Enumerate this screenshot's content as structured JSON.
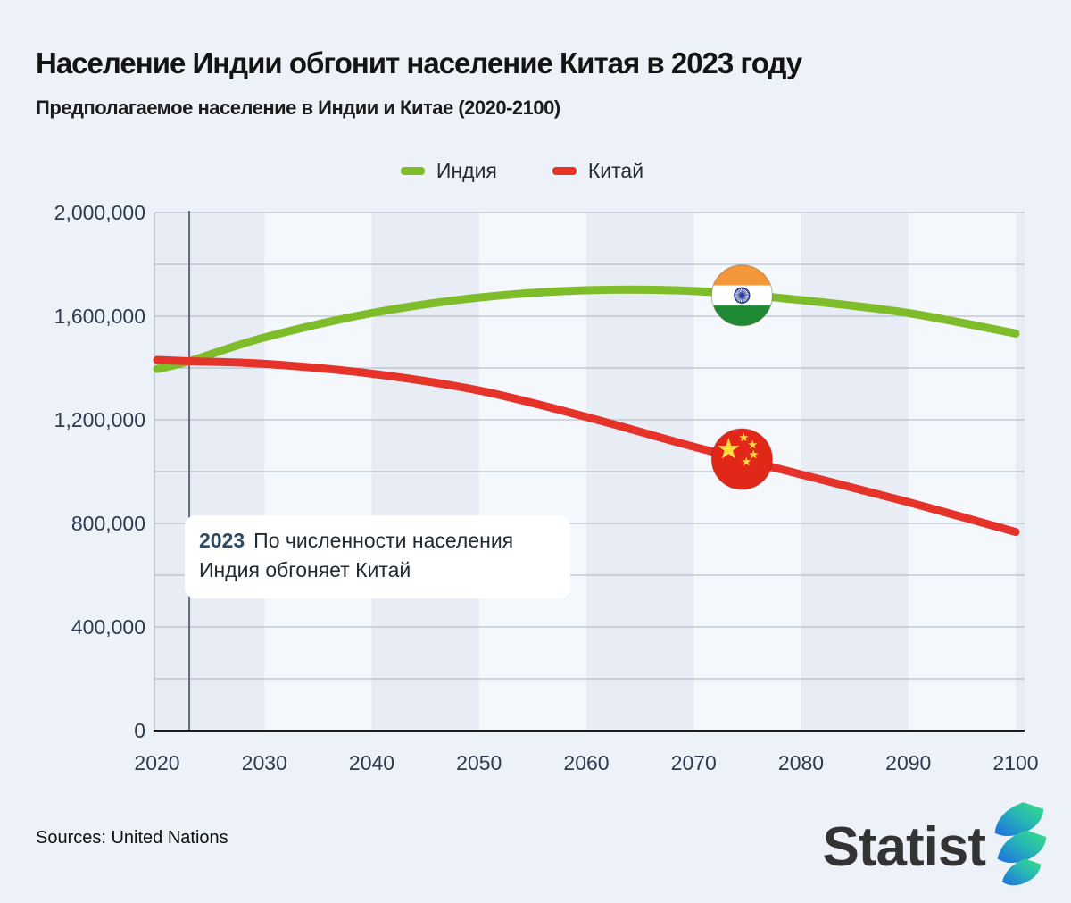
{
  "header": {
    "title": "Население Индии обгонит население Китая в 2023 году",
    "subtitle": "Предполагаемое население в Индии и Китае (2020-2100)"
  },
  "legend": {
    "items": [
      {
        "label": "Индия",
        "color": "#7fbc2a"
      },
      {
        "label": "Китай",
        "color": "#e5332a"
      }
    ]
  },
  "chart_data": {
    "type": "line",
    "title": "Население Индии обгонит население Китая в 2023 году",
    "subtitle": "Предполагаемое население в Индии и Китае (2020-2100)",
    "xlabel": "",
    "ylabel": "",
    "xlim": [
      2020,
      2100
    ],
    "ylim": [
      0,
      2000000
    ],
    "grid_step": 200000,
    "legend_position": "top",
    "years": [
      2020,
      2023,
      2030,
      2040,
      2050,
      2060,
      2070,
      2080,
      2090,
      2100
    ],
    "series": [
      {
        "name": "Индия",
        "color": "#7fbc2a",
        "flag": "india-flag",
        "values": [
          1396000,
          1426000,
          1518000,
          1612000,
          1672000,
          1700000,
          1697000,
          1662000,
          1612000,
          1533000
        ],
        "marker": {
          "year": 2074.5,
          "value": 1680000
        }
      },
      {
        "name": "Китай",
        "color": "#e5332a",
        "flag": "china-flag",
        "values": [
          1431000,
          1426000,
          1416000,
          1378000,
          1313000,
          1211000,
          1096000,
          989000,
          882000,
          767000
        ],
        "marker": {
          "year": 2074.5,
          "value": 1048000
        }
      }
    ],
    "xticks": [
      "2020",
      "2030",
      "2040",
      "2050",
      "2060",
      "2070",
      "2080",
      "2090",
      "2100"
    ],
    "ytick_values": [
      0,
      400000,
      800000,
      1200000,
      1600000,
      2000000
    ],
    "ytick_labels": [
      "0",
      "400,000",
      "800,000",
      "1,200,000",
      "1,600,000",
      "2,000,000"
    ],
    "annotation": {
      "line_year": 2023,
      "year": "2023",
      "text": "По численности населения Индия обгоняет Китай"
    },
    "style": {
      "band_dark": "#e8edf5",
      "band_light": "#f4f7fb",
      "grid_color": "#a9b4c4",
      "axis_line_color": "#1c1c1c",
      "annotation_line_color": "#5d6b7b",
      "india_flag_colors": {
        "saffron": "#f3973a",
        "white": "#ffffff",
        "green": "#1f8a33",
        "chakra": "#27399c"
      },
      "china_flag_colors": {
        "red": "#e02718",
        "star": "#ffde3e"
      }
    }
  },
  "footer": {
    "sources": "Sources: United Nations",
    "logo_text": "Statist"
  }
}
